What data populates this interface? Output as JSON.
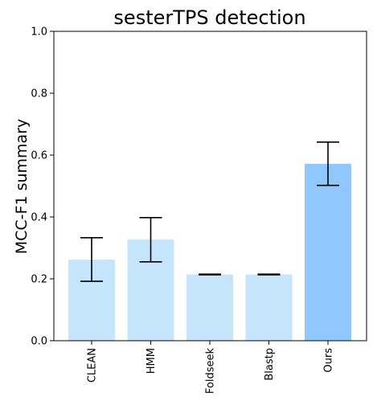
{
  "chart_data": {
    "type": "bar",
    "title": "sesterTPS detection",
    "xlabel": "",
    "ylabel": "MCC-F1 summary",
    "ylim": [
      0,
      1.0
    ],
    "yticks": [
      "0.0",
      "0.2",
      "0.4",
      "0.6",
      "0.8",
      "1.0"
    ],
    "categories": [
      "CLEAN",
      "HMM",
      "Foldseek",
      "Blastp",
      "Ours"
    ],
    "values": [
      0.262,
      0.327,
      0.214,
      0.214,
      0.572
    ],
    "error_low": [
      0.192,
      0.255,
      0.213,
      0.213,
      0.502
    ],
    "error_high": [
      0.333,
      0.398,
      0.215,
      0.215,
      0.642
    ],
    "bar_colors": [
      "#c4e5fb",
      "#c4e5fb",
      "#c4e5fb",
      "#c4e5fb",
      "#90c8fd"
    ],
    "error_color": "#000000",
    "grid": false,
    "legend": "none"
  }
}
